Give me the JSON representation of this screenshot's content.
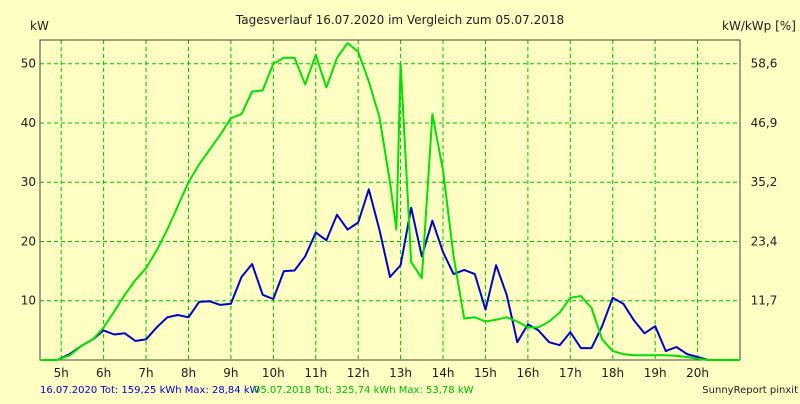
{
  "chart_data": {
    "type": "line",
    "title": "Tagesverlauf 16.07.2020 im Vergleich zum 05.07.2018",
    "ylabel_left": "kW",
    "ylabel_right": "kW/kWp [%]",
    "x_ticks": [
      "5h",
      "6h",
      "7h",
      "8h",
      "9h",
      "10h",
      "11h",
      "12h",
      "13h",
      "14h",
      "15h",
      "16h",
      "17h",
      "18h",
      "19h",
      "20h"
    ],
    "y_ticks_left": [
      "10",
      "20",
      "30",
      "40",
      "50"
    ],
    "y_ticks_right": [
      "11,7",
      "23,4",
      "35,2",
      "46,9",
      "58,6"
    ],
    "xlim": [
      4.5,
      21.0
    ],
    "ylim": [
      0,
      54
    ],
    "grid": true,
    "series": [
      {
        "name": "16.07.2020",
        "color": "#0000c8",
        "x": [
          4.5,
          4.9,
          5.2,
          5.5,
          5.75,
          6.0,
          6.25,
          6.5,
          6.75,
          7.0,
          7.25,
          7.5,
          7.75,
          8.0,
          8.25,
          8.5,
          8.75,
          9.0,
          9.25,
          9.5,
          9.75,
          10.0,
          10.25,
          10.5,
          10.75,
          11.0,
          11.25,
          11.5,
          11.75,
          12.0,
          12.25,
          12.5,
          12.75,
          13.0,
          13.25,
          13.5,
          13.75,
          14.0,
          14.25,
          14.5,
          14.75,
          15.0,
          15.25,
          15.5,
          15.75,
          16.0,
          16.25,
          16.5,
          16.75,
          17.0,
          17.25,
          17.5,
          17.75,
          18.0,
          18.25,
          18.5,
          18.75,
          19.0,
          19.25,
          19.5,
          19.75,
          20.0,
          20.25,
          20.5,
          21.0
        ],
        "y": [
          0,
          0,
          1,
          2.5,
          3.5,
          5,
          4.3,
          4.5,
          3.2,
          3.5,
          5.5,
          7.2,
          7.6,
          7.2,
          9.8,
          9.9,
          9.3,
          9.5,
          14,
          16.2,
          11,
          10.3,
          15,
          15.1,
          17.5,
          21.5,
          20.2,
          24.5,
          22,
          23.2,
          28.8,
          22,
          14,
          16,
          25.7,
          17.5,
          23.5,
          18.2,
          14.5,
          15.2,
          14.5,
          8.5,
          16,
          11,
          3,
          6,
          5,
          3,
          2.5,
          4.7,
          2,
          2,
          5.7,
          10.5,
          9.5,
          6.7,
          4.5,
          5.7,
          1.5,
          2.2,
          1,
          0.5,
          0,
          0,
          0
        ]
      },
      {
        "name": "05.07.2018",
        "color": "#00e000",
        "x": [
          4.5,
          4.9,
          5.2,
          5.5,
          5.75,
          6.0,
          6.25,
          6.5,
          6.75,
          7.0,
          7.25,
          7.5,
          7.75,
          8.0,
          8.25,
          8.5,
          8.75,
          9.0,
          9.25,
          9.5,
          9.75,
          10.0,
          10.25,
          10.5,
          10.75,
          11.0,
          11.25,
          11.5,
          11.75,
          12.0,
          12.25,
          12.5,
          12.75,
          12.9,
          13.0,
          13.25,
          13.5,
          13.75,
          14.0,
          14.25,
          14.5,
          14.75,
          15.0,
          15.25,
          15.5,
          15.75,
          16.0,
          16.25,
          16.5,
          16.75,
          17.0,
          17.25,
          17.5,
          17.75,
          18.0,
          18.25,
          18.5,
          18.75,
          19.0,
          19.25,
          19.5,
          19.75,
          20.0,
          20.25,
          20.5,
          21.0
        ],
        "y": [
          0,
          0,
          0.8,
          2.5,
          3.5,
          5.5,
          8.2,
          11,
          13.5,
          15.5,
          18.5,
          22,
          26,
          30,
          33,
          35.5,
          38,
          40.8,
          41.5,
          45.3,
          45.5,
          50,
          51,
          51,
          46.5,
          51.5,
          46,
          51,
          53.5,
          52,
          47,
          41,
          30,
          22,
          50,
          16.5,
          13.8,
          41.5,
          32,
          17.5,
          7,
          7.2,
          6.5,
          6.8,
          7.2,
          6.5,
          5.5,
          5.5,
          6.5,
          8,
          10.5,
          10.8,
          8.8,
          3.5,
          1.5,
          1,
          0.8,
          0.8,
          0.8,
          0.8,
          0.7,
          0.5,
          0.2,
          0,
          0,
          0
        ]
      }
    ],
    "footer": {
      "blue_text": "16.07.2020 Tot: 159,25 kWh Max: 28,84 kW",
      "green_text": "05.07.2018 Tot: 325,74 kWh Max: 53,78 kW",
      "right_text": "SunnyReport pinxit"
    }
  }
}
